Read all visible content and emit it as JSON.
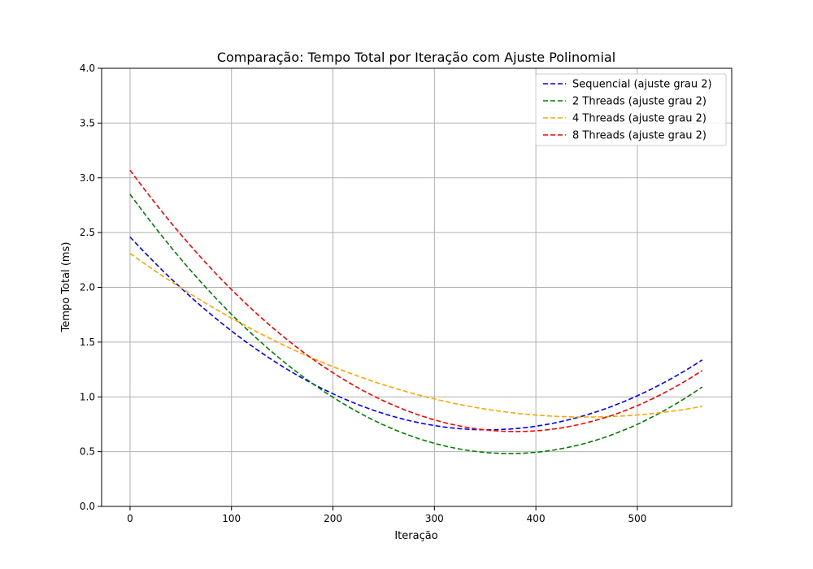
{
  "chart_data": {
    "type": "line",
    "title": "Comparação: Tempo Total por Iteração com Ajuste Polinomial",
    "xlabel": "Iteração",
    "ylabel": "Tempo Total (ms)",
    "xlim": [
      -28,
      593
    ],
    "ylim": [
      0,
      4
    ],
    "x_ticks": [
      0,
      100,
      200,
      300,
      400,
      500
    ],
    "y_ticks": [
      0.0,
      0.5,
      1.0,
      1.5,
      2.0,
      2.5,
      3.0,
      3.5,
      4.0
    ],
    "x_tick_labels": [
      "0",
      "100",
      "200",
      "300",
      "400",
      "500"
    ],
    "y_tick_labels": [
      "0.0",
      "0.5",
      "1.0",
      "1.5",
      "2.0",
      "2.5",
      "3.0",
      "3.5",
      "4.0"
    ],
    "grid": true,
    "legend_position": "top-right",
    "x_range": [
      0,
      564
    ],
    "series": [
      {
        "name": "Sequencial (ajuste grau 2)",
        "color": "#0000ff",
        "dash": "dashed",
        "fit": "polynomial degree 2",
        "coefficients": [
          2.46,
          -0.01,
          1.42e-05
        ]
      },
      {
        "name": "2 Threads (ajuste grau 2)",
        "color": "#008000",
        "dash": "dashed",
        "fit": "polynomial degree 2",
        "coefficients": [
          2.85,
          -0.01265,
          1.69e-05
        ]
      },
      {
        "name": "4 Threads (ajuste grau 2)",
        "color": "#ffa500",
        "dash": "dashed",
        "fit": "polynomial degree 2",
        "coefficients": [
          2.31,
          -0.00665,
          7.4e-06
        ]
      },
      {
        "name": "8 Threads (ajuste grau 2)",
        "color": "#ff0000",
        "dash": "dashed",
        "fit": "polynomial degree 2",
        "coefficients": [
          3.07,
          -0.01255,
          1.65e-05
        ]
      }
    ]
  }
}
